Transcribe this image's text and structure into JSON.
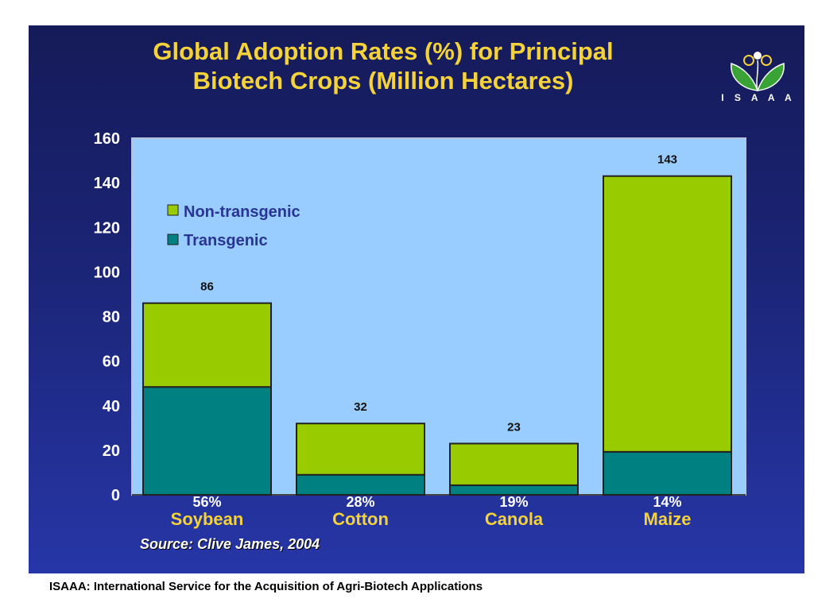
{
  "slide": {
    "title_line1": "Global Adoption Rates (%) for Principal",
    "title_line2": "Biotech Crops (Million Hectares)",
    "logo_text": "I S A A A",
    "source": "Source: Clive James, 2004",
    "footer": "ISAAA: International Service for the Acquisition of Agri-Biotech Applications"
  },
  "colors": {
    "plot_bg": "#99ccff",
    "transgenic": "#008080",
    "non_transgenic": "#99cc00",
    "title": "#f4d23a"
  },
  "chart_data": {
    "type": "bar",
    "stacked": true,
    "title": "Global Adoption Rates (%) for Principal Biotech Crops (Million Hectares)",
    "xlabel": "",
    "ylabel": "",
    "ylim": [
      0,
      160
    ],
    "yticks": [
      0,
      20,
      40,
      60,
      80,
      100,
      120,
      140,
      160
    ],
    "categories": [
      "Soybean",
      "Cotton",
      "Canola",
      "Maize"
    ],
    "adoption_rates": [
      "56%",
      "28%",
      "19%",
      "14%"
    ],
    "totals": [
      86,
      32,
      23,
      143
    ],
    "total_labels": [
      "86",
      "32",
      "23",
      "143"
    ],
    "legend_position": "upper-left inside plot",
    "series": [
      {
        "name": "Transgenic",
        "values": [
          48.4,
          9.0,
          4.3,
          19.3
        ]
      },
      {
        "name": "Non-transgenic",
        "values": [
          37.6,
          23.0,
          18.7,
          123.7
        ]
      }
    ],
    "legend": [
      "Non-transgenic",
      "Transgenic"
    ]
  }
}
